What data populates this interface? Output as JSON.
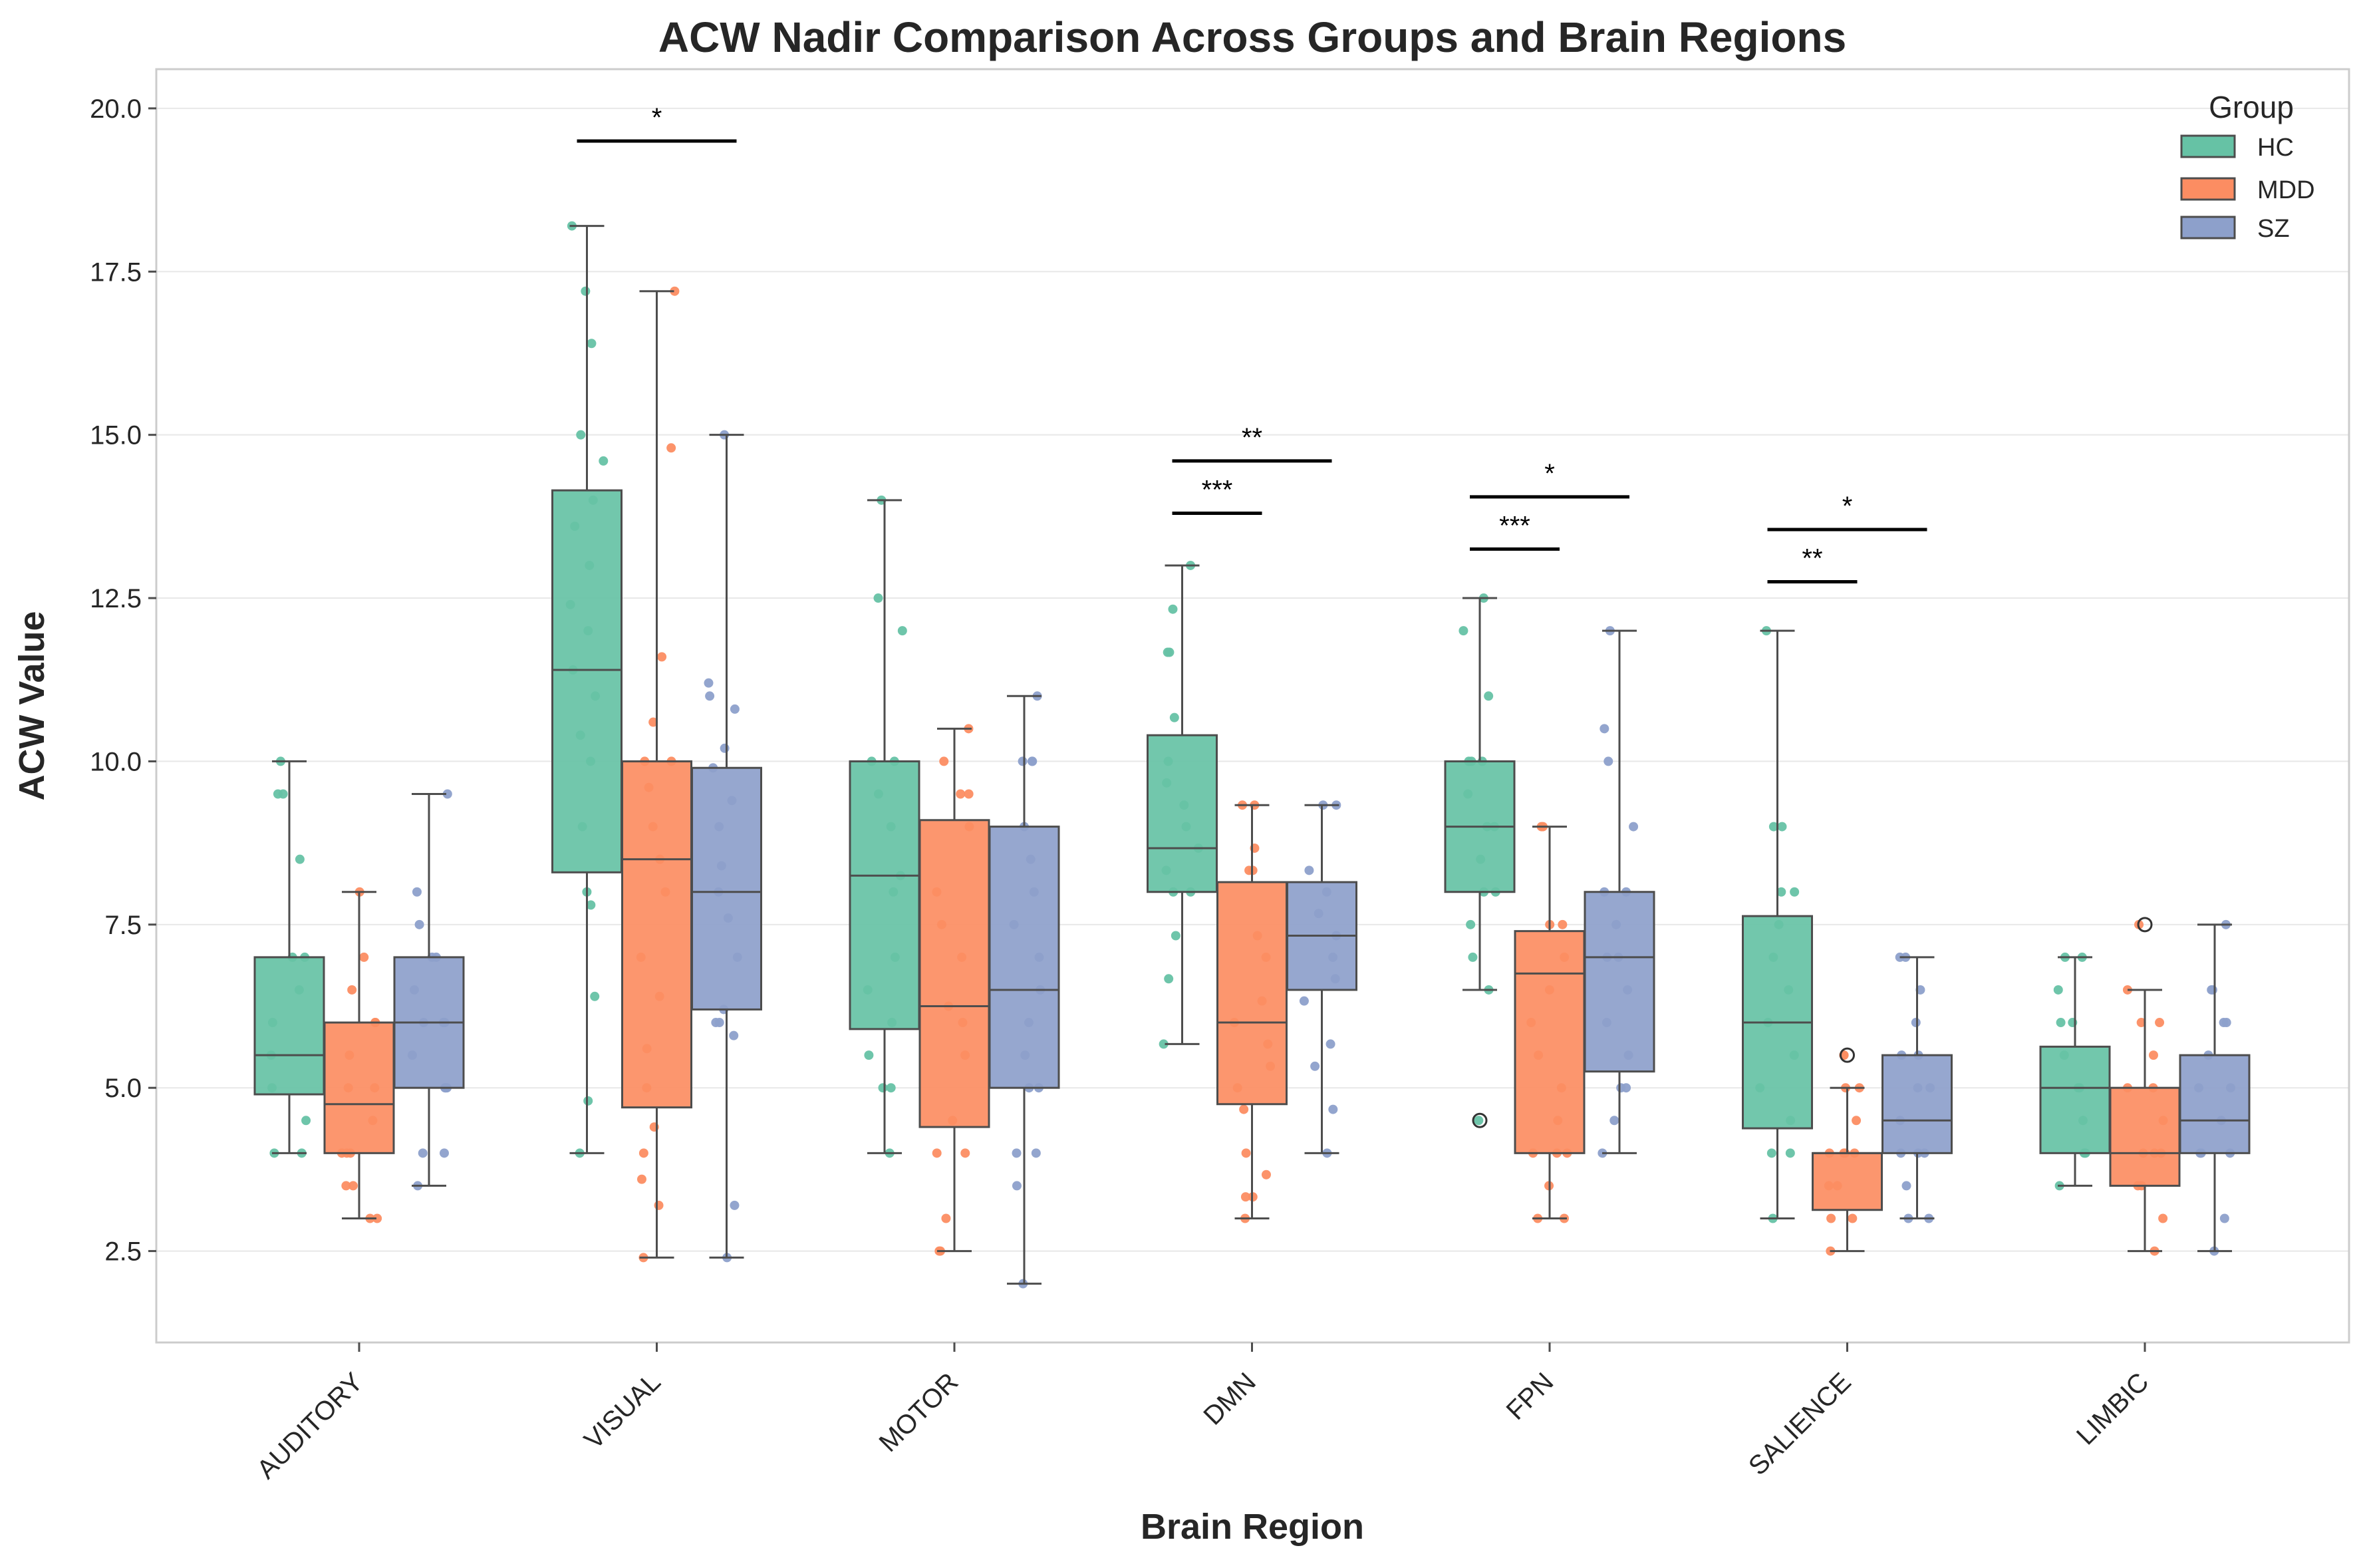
{
  "chart_data": {
    "type": "box",
    "title": "ACW Nadir Comparison Across Groups and Brain Regions",
    "xlabel": "Brain Region",
    "ylabel": "ACW Value",
    "ylim": [
      1.1,
      20.6
    ],
    "yticks": [
      "2.5",
      "5.0",
      "7.5",
      "10.0",
      "12.5",
      "15.0",
      "17.5",
      "20.0"
    ],
    "grid": "horizontal",
    "legend": {
      "title": "Group",
      "placement": "top-right"
    },
    "categories": [
      "AUDITORY",
      "VISUAL",
      "MOTOR",
      "DMN",
      "FPN",
      "SALIENCE",
      "LIMBIC"
    ],
    "groups": [
      {
        "name": "HC",
        "color": "#66c2a5"
      },
      {
        "name": "MDD",
        "color": "#fc8d62"
      },
      {
        "name": "SZ",
        "color": "#8da0cb"
      }
    ],
    "boxes": [
      [
        {
          "wlo": 4.0,
          "q1": 4.9,
          "med": 5.5,
          "q3": 7.0,
          "whi": 10.0,
          "fliers": []
        },
        {
          "wlo": 3.0,
          "q1": 4.0,
          "med": 4.75,
          "q3": 6.0,
          "whi": 8.0,
          "fliers": []
        },
        {
          "wlo": 3.5,
          "q1": 5.0,
          "med": 6.0,
          "q3": 7.0,
          "whi": 9.5,
          "fliers": []
        }
      ],
      [
        {
          "wlo": 4.0,
          "q1": 8.3,
          "med": 11.4,
          "q3": 14.15,
          "whi": 18.2,
          "fliers": []
        },
        {
          "wlo": 2.4,
          "q1": 4.7,
          "med": 8.5,
          "q3": 10.0,
          "whi": 17.2,
          "fliers": []
        },
        {
          "wlo": 2.4,
          "q1": 6.2,
          "med": 8.0,
          "q3": 9.9,
          "whi": 15.0,
          "fliers": []
        }
      ],
      [
        {
          "wlo": 4.0,
          "q1": 5.9,
          "med": 8.25,
          "q3": 10.0,
          "whi": 14.0,
          "fliers": []
        },
        {
          "wlo": 2.5,
          "q1": 4.4,
          "med": 6.25,
          "q3": 9.1,
          "whi": 10.5,
          "fliers": []
        },
        {
          "wlo": 2.0,
          "q1": 5.0,
          "med": 6.5,
          "q3": 9.0,
          "whi": 11.0,
          "fliers": []
        }
      ],
      [
        {
          "wlo": 5.67,
          "q1": 8.0,
          "med": 8.67,
          "q3": 10.4,
          "whi": 13.0,
          "fliers": []
        },
        {
          "wlo": 3.0,
          "q1": 4.75,
          "med": 6.0,
          "q3": 8.15,
          "whi": 9.33,
          "fliers": []
        },
        {
          "wlo": 4.0,
          "q1": 6.5,
          "med": 7.33,
          "q3": 8.15,
          "whi": 9.33,
          "fliers": []
        }
      ],
      [
        {
          "wlo": 6.5,
          "q1": 8.0,
          "med": 9.0,
          "q3": 10.0,
          "whi": 12.5,
          "fliers": [
            4.5
          ]
        },
        {
          "wlo": 3.0,
          "q1": 4.0,
          "med": 6.75,
          "q3": 7.4,
          "whi": 9.0,
          "fliers": []
        },
        {
          "wlo": 4.0,
          "q1": 5.25,
          "med": 7.0,
          "q3": 8.0,
          "whi": 12.0,
          "fliers": []
        }
      ],
      [
        {
          "wlo": 3.0,
          "q1": 4.38,
          "med": 6.0,
          "q3": 7.63,
          "whi": 12.0,
          "fliers": []
        },
        {
          "wlo": 2.5,
          "q1": 3.13,
          "med": 4.0,
          "q3": 4.0,
          "whi": 5.0,
          "fliers": [
            5.5
          ]
        },
        {
          "wlo": 3.0,
          "q1": 4.0,
          "med": 4.5,
          "q3": 5.5,
          "whi": 7.0,
          "fliers": []
        }
      ],
      [
        {
          "wlo": 3.5,
          "q1": 4.0,
          "med": 5.0,
          "q3": 5.63,
          "whi": 7.0,
          "fliers": []
        },
        {
          "wlo": 2.5,
          "q1": 3.5,
          "med": 4.0,
          "q3": 5.0,
          "whi": 6.5,
          "fliers": [
            7.5
          ]
        },
        {
          "wlo": 2.5,
          "q1": 4.0,
          "med": 4.5,
          "q3": 5.5,
          "whi": 7.5,
          "fliers": []
        }
      ]
    ],
    "points": [
      [
        [
          4,
          4,
          4.5,
          5,
          5.5,
          6,
          6.5,
          7,
          7,
          8.5,
          9.5,
          9.5,
          10
        ],
        [
          3,
          3,
          3.5,
          3.5,
          4,
          4,
          4,
          4.5,
          5,
          5,
          5.5,
          6,
          6,
          6.5,
          7,
          8
        ],
        [
          3.5,
          4,
          4,
          5,
          5,
          5,
          5.5,
          6,
          6,
          6,
          6.5,
          7,
          7,
          7.5,
          8,
          9.5
        ]
      ],
      [
        [
          4,
          4.8,
          6.4,
          7.8,
          8,
          9,
          10,
          10.4,
          11,
          11.4,
          12,
          12.4,
          13,
          13.6,
          14,
          14.6,
          15,
          16.4,
          17.2,
          18.2
        ],
        [
          2.4,
          3.2,
          3.6,
          4,
          4.4,
          5,
          5.6,
          6.4,
          7,
          8,
          8.5,
          9,
          9.6,
          10,
          10,
          10.6,
          11.6,
          14.8,
          17.2
        ],
        [
          2.4,
          3.2,
          5.8,
          6,
          6,
          6.2,
          7,
          7.6,
          8,
          8.4,
          9,
          9.4,
          9.9,
          10.2,
          10.8,
          11,
          11.2,
          15
        ]
      ],
      [
        [
          4,
          5,
          5,
          5.5,
          6,
          6.5,
          7,
          8,
          8.25,
          9,
          9.5,
          10,
          10,
          12,
          12.5,
          14
        ],
        [
          2.5,
          2.5,
          3,
          4,
          4,
          4.5,
          5.5,
          6,
          6.25,
          7,
          7.5,
          8,
          9,
          9.5,
          9.5,
          10,
          10.5
        ],
        [
          2,
          3.5,
          4,
          4,
          5,
          5,
          5.5,
          6,
          6.5,
          7,
          7.5,
          8,
          8.5,
          9,
          10,
          10,
          10,
          11
        ]
      ],
      [
        [
          5.67,
          6.67,
          7.33,
          8,
          8,
          8.33,
          8.67,
          9,
          9.33,
          9.67,
          10,
          10.67,
          11.67,
          11.67,
          12.33,
          13
        ],
        [
          3,
          3.33,
          3.33,
          3.67,
          4,
          4.67,
          5,
          5.33,
          5.67,
          6,
          6.33,
          7,
          7.33,
          8.33,
          8.33,
          8.67,
          9.33,
          9.33
        ],
        [
          4,
          4.67,
          5.33,
          5.67,
          6.33,
          6.67,
          7,
          7.33,
          7.67,
          8,
          8.33,
          9.33,
          9.33
        ]
      ],
      [
        [
          4.5,
          6.5,
          7,
          7.5,
          8,
          8,
          8.5,
          9,
          9,
          9.5,
          10,
          10,
          10,
          11,
          12,
          12.5
        ],
        [
          3,
          3,
          3.5,
          4,
          4,
          4,
          4.5,
          5,
          5.5,
          6,
          6.5,
          7,
          7.5,
          7.5,
          9,
          9
        ],
        [
          4,
          4.5,
          5,
          5,
          5.5,
          6,
          6.5,
          7,
          7,
          7.5,
          8,
          8,
          9,
          10,
          10.5,
          12
        ]
      ],
      [
        [
          3,
          4,
          4,
          4.5,
          5,
          5.5,
          6,
          6.5,
          7,
          7.5,
          8,
          8,
          9,
          9,
          12
        ],
        [
          2.5,
          3,
          3,
          3.5,
          3.5,
          4,
          4,
          4,
          4,
          4.5,
          5,
          5,
          5.5,
          5.5
        ],
        [
          3,
          3,
          3.5,
          4,
          4,
          4,
          4.5,
          5,
          5,
          5.5,
          5.5,
          6,
          6.5,
          7,
          7
        ]
      ],
      [
        [
          3.5,
          4,
          4,
          4.5,
          5,
          5,
          5.5,
          6,
          6,
          6.5,
          7,
          7
        ],
        [
          2.5,
          3,
          3.5,
          3.5,
          4,
          4,
          4,
          4.5,
          5,
          5,
          5.5,
          6,
          6,
          6.5,
          7.5
        ],
        [
          2.5,
          3,
          4,
          4,
          4,
          4.5,
          5,
          5,
          5.5,
          6,
          6,
          6.5,
          6.5,
          7.5
        ]
      ]
    ],
    "annotations": [
      {
        "category": "VISUAL",
        "from": "HC",
        "to": "SZ",
        "y": 19.5,
        "label": "*"
      },
      {
        "category": "DMN",
        "from": "HC",
        "to": "MDD",
        "y": 13.8,
        "label": "***"
      },
      {
        "category": "DMN",
        "from": "HC",
        "to": "SZ",
        "y": 14.6,
        "label": "**"
      },
      {
        "category": "FPN",
        "from": "HC",
        "to": "MDD",
        "y": 13.25,
        "label": "***"
      },
      {
        "category": "FPN",
        "from": "HC",
        "to": "SZ",
        "y": 14.05,
        "label": "*"
      },
      {
        "category": "SALIENCE",
        "from": "HC",
        "to": "MDD",
        "y": 12.75,
        "label": "**"
      },
      {
        "category": "SALIENCE",
        "from": "HC",
        "to": "SZ",
        "y": 13.55,
        "label": "*"
      }
    ]
  }
}
